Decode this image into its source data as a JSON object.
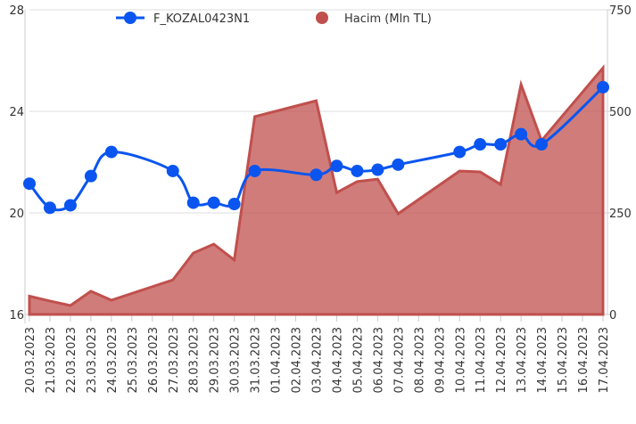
{
  "chart_data": {
    "type": "line_area",
    "categories": [
      "20.03.2023",
      "21.03.2023",
      "22.03.2023",
      "23.03.2023",
      "24.03.2023",
      "25.03.2023",
      "26.03.2023",
      "27.03.2023",
      "28.03.2023",
      "29.03.2023",
      "30.03.2023",
      "31.03.2023",
      "01.04.2023",
      "02.04.2023",
      "03.04.2023",
      "04.04.2023",
      "05.04.2023",
      "06.04.2023",
      "07.04.2023",
      "08.04.2023",
      "09.04.2023",
      "10.04.2023",
      "11.04.2023",
      "12.04.2023",
      "13.04.2023",
      "14.04.2023",
      "15.04.2023",
      "16.04.2023",
      "17.04.2023"
    ],
    "series": [
      {
        "name": "F_KOZAL0423N1",
        "color": "#0a55f0",
        "axis": "y",
        "kind": "line",
        "values": [
          21.15,
          20.2,
          20.3,
          21.45,
          22.4,
          null,
          null,
          21.65,
          20.4,
          20.4,
          20.35,
          21.65,
          null,
          null,
          21.5,
          21.85,
          21.65,
          21.7,
          21.9,
          null,
          null,
          22.4,
          22.7,
          22.7,
          23.1,
          22.7,
          null,
          null,
          24.95
        ]
      },
      {
        "name": "Hacim (Mln TL)",
        "color": "#c0504d",
        "axis": "y2",
        "kind": "area",
        "values": [
          45,
          33,
          22,
          57,
          35,
          null,
          null,
          85,
          151,
          173,
          134,
          487,
          null,
          null,
          526,
          300,
          327,
          333,
          248,
          null,
          null,
          353,
          351,
          320,
          566,
          428,
          null,
          null,
          607
        ]
      }
    ],
    "ylim": [
      16,
      28
    ],
    "yticks": [
      16,
      20,
      24,
      28
    ],
    "y2lim": [
      0,
      750
    ],
    "y2ticks": [
      0,
      250,
      500,
      750
    ],
    "grid": true,
    "connect_gaps": true,
    "legend": "top"
  }
}
